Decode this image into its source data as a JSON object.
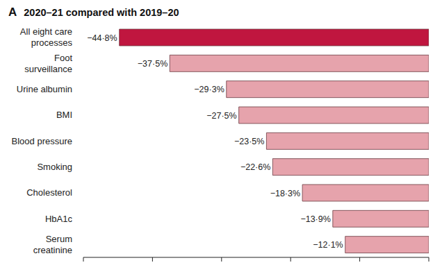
{
  "chart_data": {
    "type": "bar",
    "orientation": "horizontal",
    "panel_label": "A",
    "title": "2020–21 compared with 2019–20",
    "categories": [
      "All eight care processes",
      "Foot surveillance",
      "Urine albumin",
      "BMI",
      "Blood pressure",
      "Smoking",
      "Cholesterol",
      "HbA1c",
      "Serum creatinine"
    ],
    "values": [
      -44.8,
      -37.5,
      -29.3,
      -27.5,
      -23.5,
      -22.6,
      -18.3,
      -13.9,
      -12.1
    ],
    "value_labels": [
      "−44·8%",
      "−37·5%",
      "−29·3%",
      "−27·5%",
      "−23·5%",
      "−22·6%",
      "−18·3%",
      "−13·9%",
      "−12·1%"
    ],
    "data_labels": true,
    "colors": [
      "#c0163f",
      "#e6a3ac",
      "#e6a3ac",
      "#e6a3ac",
      "#e6a3ac",
      "#e6a3ac",
      "#e6a3ac",
      "#e6a3ac",
      "#e6a3ac"
    ],
    "xlim": [
      -50,
      0
    ],
    "xticks": [
      -50,
      -40,
      -30,
      -20,
      -10,
      0
    ],
    "tick_labels": "y",
    "grid": false
  }
}
